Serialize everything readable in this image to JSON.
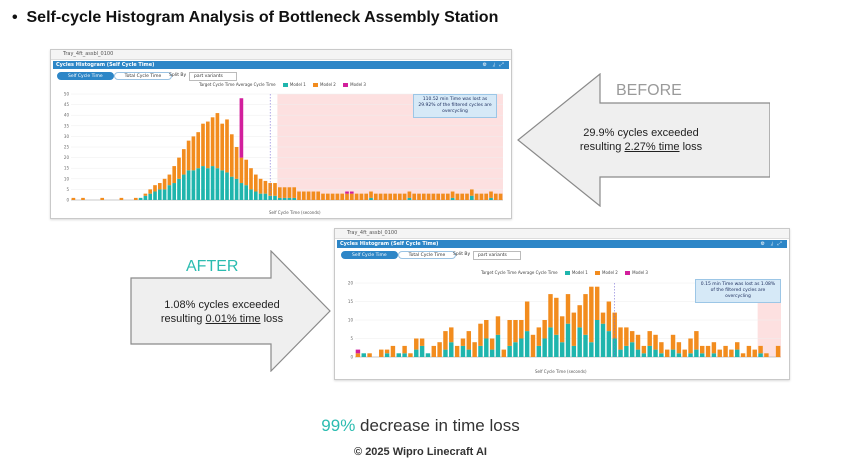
{
  "title": "Self-cycle Histogram Analysis of Bottleneck Assembly Station",
  "bullet": "•",
  "colors": {
    "model1": "#1fb5ad",
    "model2": "#f28c1e",
    "model3": "#d21f9c",
    "exceed": "#fde0e0",
    "accent": "#2bbcb0"
  },
  "before_panel": {
    "window_title": "Tray_4ft_assbl_0100",
    "panel_title": "Cycles Histogram (Self Cycle Time)",
    "tab_self": "Self Cycle Time",
    "tab_total": "Total Cycle Time",
    "split_label": "Split By",
    "split_value": "part variants",
    "legend": {
      "target": "Target Cycle Time",
      "average": "Average Cycle Time",
      "model1": "Model 1",
      "model2": "Model 2",
      "model3": "Model 3"
    },
    "note": [
      "110.52 min Time was lost as",
      "29.92% of the filtered cycles are",
      "overcycling"
    ],
    "x_axis_label": "Self Cycle Time (seconds)",
    "y_axis_label": "No. of Cycles (counts)"
  },
  "after_panel": {
    "window_title": "Tray_4ft_assbl_0100",
    "panel_title": "Cycles Histogram (Self Cycle Time)",
    "tab_self": "Self Cycle Time",
    "tab_total": "Total Cycle Time",
    "split_label": "Split By",
    "split_value": "part variants",
    "legend": {
      "target": "Target Cycle Time",
      "average": "Average Cycle Time",
      "model1": "Model 1",
      "model2": "Model 2",
      "model3": "Model 3"
    },
    "note": [
      "0.15 min Time was lost as 1.08%",
      "of the filtered cycles are",
      "overcycling"
    ],
    "x_axis_label": "Self Cycle Time (seconds)",
    "y_axis_label": "No. of Cycles (counts)"
  },
  "before_label": "BEFORE",
  "after_label": "AFTER",
  "before_text": {
    "line1": "29.9% cycles exceeded",
    "prefix": "resulting ",
    "underlined": "2.27% time",
    "suffix": " loss"
  },
  "after_text": {
    "line1": "1.08% cycles exceeded",
    "prefix": "resulting ",
    "underlined": "0.01% time",
    "suffix": " loss"
  },
  "summary": {
    "pct": "99%",
    "rest": " decrease in time loss"
  },
  "copyright": "© 2025 Wipro Linecraft AI",
  "chart_data": [
    {
      "type": "bar",
      "title": "Cycles Histogram (Self Cycle Time) - Before",
      "xlabel": "Self Cycle Time (seconds)",
      "ylabel": "No. of Cycles (counts)",
      "ylim": [
        0,
        50
      ],
      "yticks": [
        0,
        5,
        10,
        15,
        20,
        25,
        30,
        35,
        40,
        45,
        50
      ],
      "exceed_from_bin": 43,
      "series": [
        {
          "name": "Model 1",
          "values": [
            0,
            0,
            0,
            0,
            0,
            0,
            0,
            0,
            0,
            0,
            0,
            0,
            0,
            0,
            1,
            2,
            3,
            4,
            5,
            5,
            7,
            8,
            10,
            12,
            14,
            14,
            15,
            16,
            15,
            16,
            15,
            14,
            13,
            11,
            10,
            8,
            7,
            5,
            4,
            3,
            3,
            2,
            2,
            1,
            1,
            1,
            1,
            0,
            0,
            0,
            0,
            0,
            0,
            0,
            0,
            0,
            0,
            0,
            0,
            0,
            0,
            0,
            1,
            0,
            0,
            0,
            0,
            0,
            0,
            0,
            1,
            0,
            0,
            0,
            0,
            0,
            0,
            0,
            0,
            1,
            0,
            0,
            0,
            2,
            0,
            0,
            0,
            1,
            0,
            0
          ]
        },
        {
          "name": "Model 2",
          "values": [
            1,
            0,
            1,
            0,
            0,
            0,
            1,
            0,
            0,
            0,
            1,
            0,
            0,
            1,
            0,
            1,
            2,
            3,
            3,
            5,
            5,
            8,
            10,
            12,
            14,
            16,
            17,
            20,
            22,
            23,
            26,
            22,
            25,
            20,
            15,
            12,
            12,
            10,
            8,
            7,
            6,
            6,
            6,
            5,
            5,
            5,
            5,
            4,
            4,
            4,
            4,
            4,
            3,
            3,
            3,
            3,
            3,
            3,
            3,
            3,
            3,
            3,
            3,
            3,
            3,
            3,
            3,
            3,
            3,
            3,
            3,
            3,
            3,
            3,
            3,
            3,
            3,
            3,
            3,
            3,
            3,
            3,
            3,
            3,
            3,
            3,
            3,
            3,
            3,
            3
          ]
        },
        {
          "name": "Model 3",
          "values": [
            0,
            0,
            0,
            0,
            0,
            0,
            0,
            0,
            0,
            0,
            0,
            0,
            0,
            0,
            0,
            0,
            0,
            0,
            0,
            0,
            0,
            0,
            0,
            0,
            0,
            0,
            0,
            0,
            0,
            0,
            0,
            0,
            0,
            0,
            0,
            28,
            0,
            0,
            0,
            0,
            0,
            0,
            0,
            0,
            0,
            0,
            0,
            0,
            0,
            0,
            0,
            0,
            0,
            0,
            0,
            0,
            0,
            1,
            1,
            0,
            0,
            0,
            0,
            0,
            0,
            0,
            0,
            0,
            0,
            0,
            0,
            0,
            0,
            0,
            0,
            0,
            0,
            0,
            0,
            0,
            0,
            0,
            0,
            0,
            0,
            0,
            0,
            0,
            0,
            0
          ]
        }
      ],
      "target_line_bin": 41
    },
    {
      "type": "bar",
      "title": "Cycles Histogram (Self Cycle Time) - After",
      "xlabel": "Self Cycle Time (seconds)",
      "ylabel": "No. of Cycles (counts)",
      "ylim": [
        0,
        20
      ],
      "yticks": [
        0,
        5,
        10,
        15,
        20
      ],
      "exceed_from_bin": 69,
      "series": [
        {
          "name": "Model 1",
          "values": [
            0,
            1,
            0,
            0,
            0,
            1,
            0,
            1,
            1,
            0,
            2,
            3,
            1,
            0,
            0,
            2,
            4,
            0,
            3,
            2,
            0,
            3,
            5,
            2,
            6,
            0,
            3,
            4,
            5,
            7,
            0,
            3,
            5,
            8,
            6,
            4,
            9,
            3,
            8,
            6,
            4,
            10,
            9,
            7,
            5,
            2,
            3,
            4,
            2,
            1,
            3,
            2,
            1,
            0,
            2,
            1,
            0,
            1,
            2,
            1,
            0,
            1,
            0,
            0,
            0,
            2,
            0,
            0,
            0,
            1,
            0,
            0,
            0
          ]
        },
        {
          "name": "Model 2",
          "values": [
            1,
            0,
            1,
            0,
            2,
            1,
            3,
            0,
            2,
            1,
            3,
            2,
            0,
            3,
            4,
            5,
            4,
            3,
            2,
            5,
            4,
            6,
            5,
            3,
            5,
            2,
            7,
            6,
            5,
            8,
            6,
            5,
            5,
            9,
            10,
            7,
            8,
            9,
            6,
            11,
            15,
            9,
            3,
            8,
            7,
            6,
            5,
            3,
            4,
            2,
            4,
            4,
            3,
            2,
            4,
            3,
            2,
            4,
            5,
            2,
            3,
            3,
            2,
            3,
            2,
            2,
            1,
            3,
            2,
            2,
            1,
            0,
            3
          ]
        },
        {
          "name": "Model 3",
          "values": [
            1,
            0,
            0,
            0,
            0,
            0,
            0,
            0,
            0,
            0,
            0,
            0,
            0,
            0,
            0,
            0,
            0,
            0,
            0,
            0,
            0,
            0,
            0,
            0,
            0,
            0,
            0,
            0,
            0,
            0,
            0,
            0,
            0,
            0,
            0,
            0,
            0,
            0,
            0,
            0,
            0,
            0,
            0,
            0,
            0,
            0,
            0,
            0,
            0,
            0,
            0,
            0,
            0,
            0,
            0,
            0,
            0,
            0,
            0,
            0,
            0,
            0,
            0,
            0,
            0,
            0,
            0,
            0,
            0,
            0,
            0,
            0,
            0
          ]
        }
      ],
      "target_line_bin": 44
    }
  ]
}
